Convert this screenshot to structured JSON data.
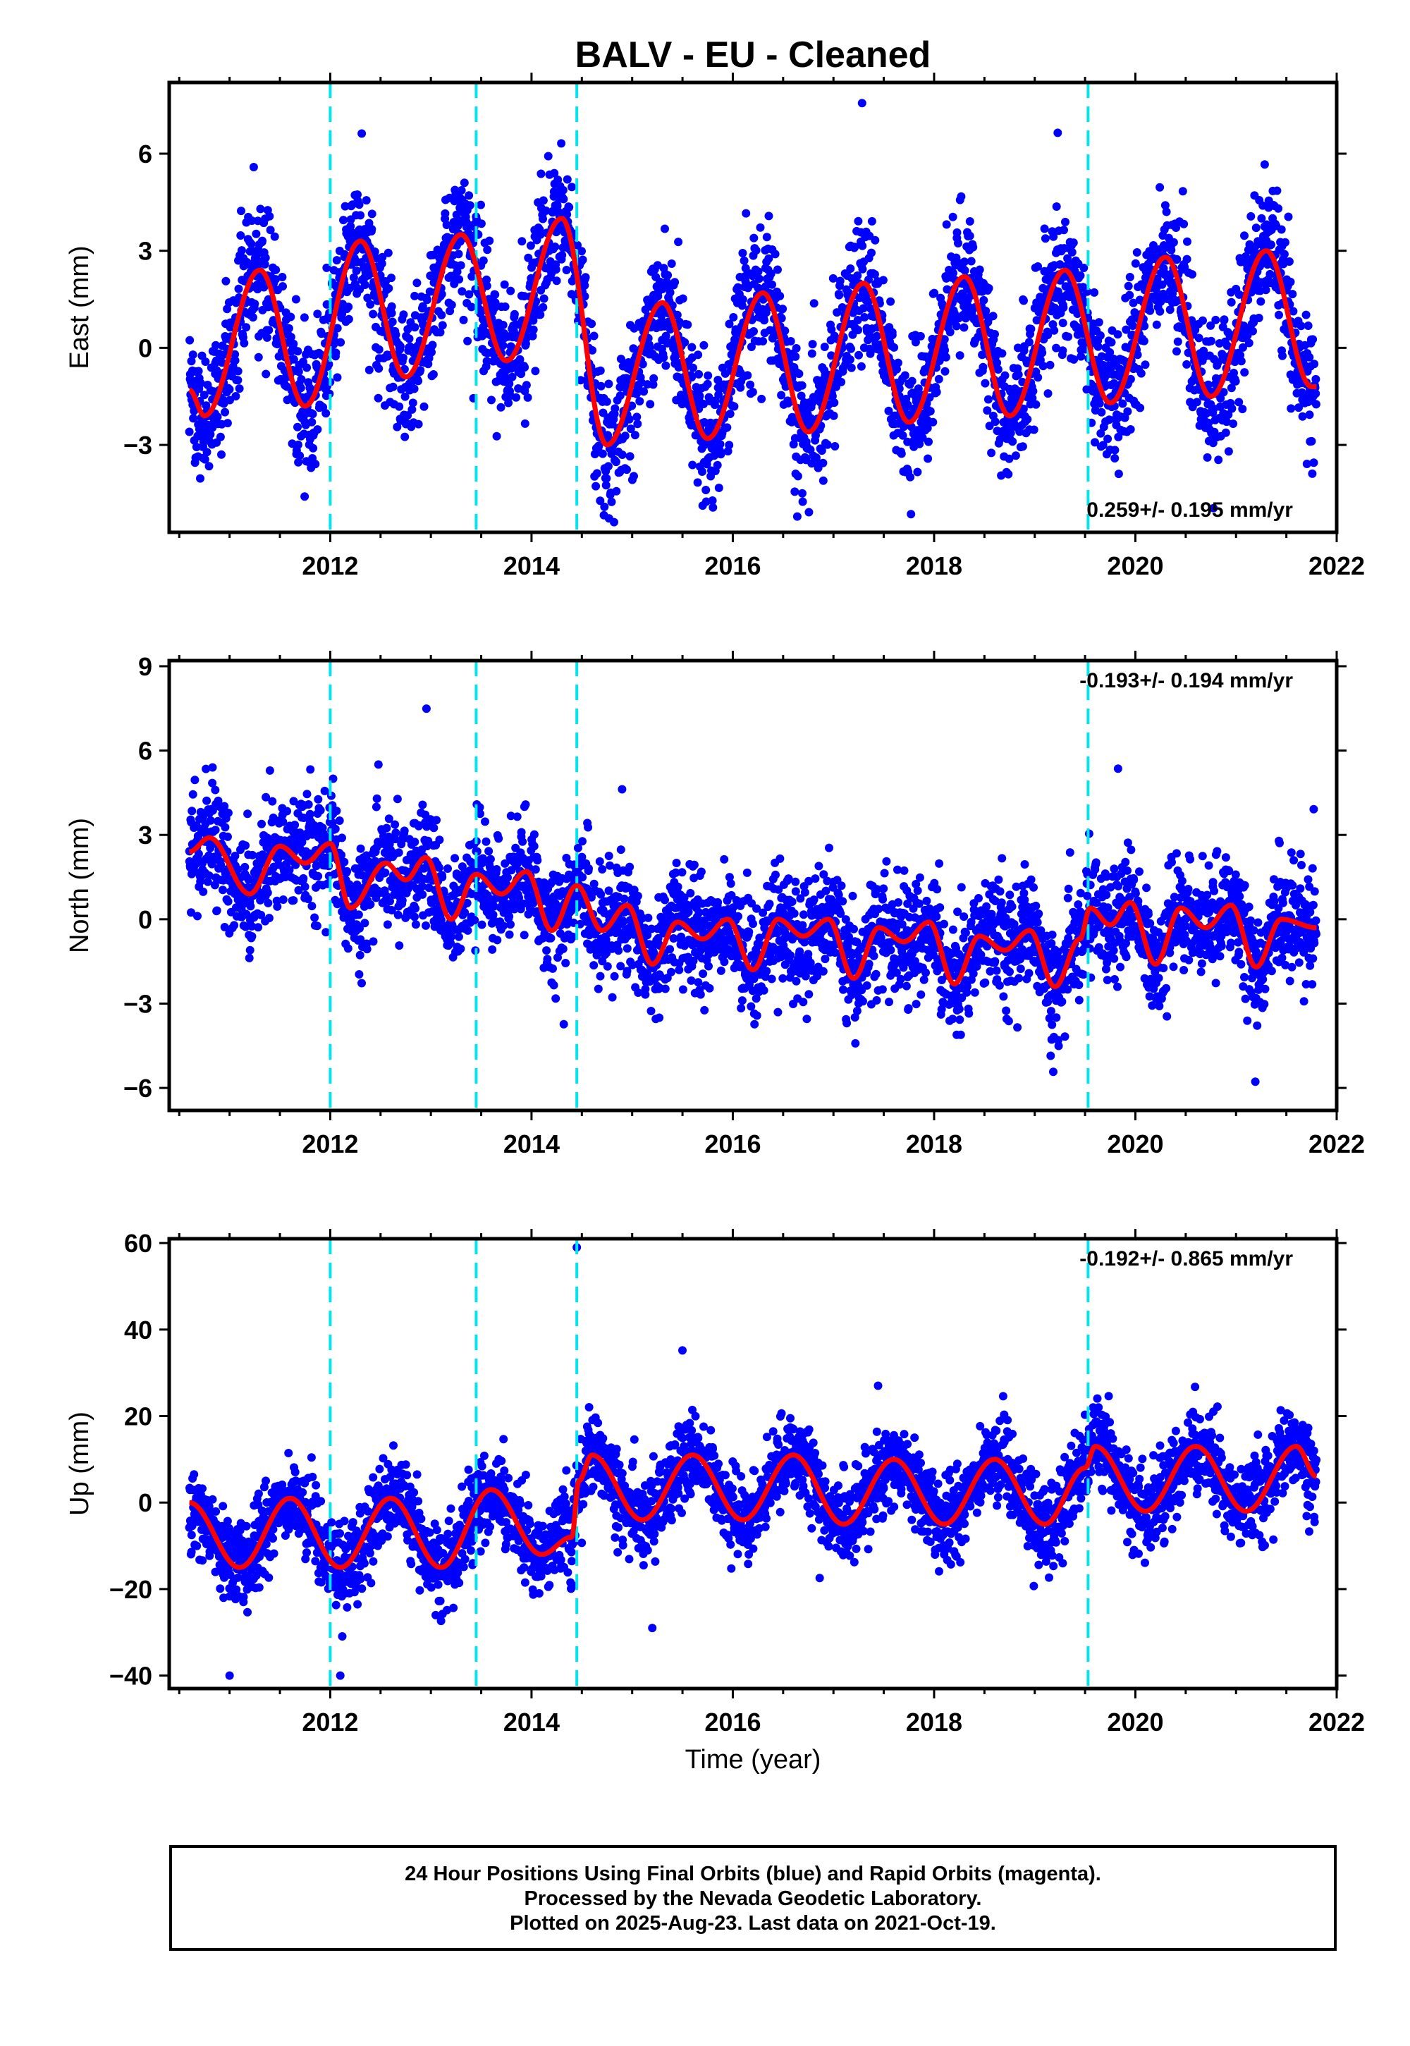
{
  "title": "BALV  - EU - Cleaned",
  "xlabel": "Time (year)",
  "footer": {
    "line1": "24 Hour Positions Using Final Orbits (blue) and Rapid Orbits (magenta).",
    "line2": "Processed by the Nevada Geodetic Laboratory.",
    "line3": "Plotted on 2025-Aug-23. Last data on 2021-Oct-19."
  },
  "colors": {
    "final_orbit_points": "#0000ff",
    "rapid_orbit_points": "#ff00ff",
    "model_fit": "#ff0000",
    "event_lines": "#00e5ee"
  },
  "chart_data": [
    {
      "type": "scatter",
      "panel": "east",
      "ylabel": "East (mm)",
      "rate_text": "0.259+/- 0.195 mm/yr",
      "rate_position": "bottom-right",
      "xlim": [
        2010.4,
        2022.0
      ],
      "ylim": [
        -5.7,
        8.2
      ],
      "x_ticks": [
        2012,
        2014,
        2016,
        2018,
        2020,
        2022
      ],
      "y_ticks": [
        -3,
        0,
        3,
        6
      ],
      "event_lines": [
        2012.0,
        2013.45,
        2014.45,
        2019.53
      ],
      "data_start": 2010.6,
      "data_end": 2021.8,
      "seasonal_model": {
        "annual_peaks": [
          {
            "x": 2010.6,
            "y": -1.3
          },
          {
            "x": 2010.75,
            "y": -2.1
          },
          {
            "x": 2011.3,
            "y": 2.4
          },
          {
            "x": 2011.75,
            "y": -1.8
          },
          {
            "x": 2012.3,
            "y": 3.3
          },
          {
            "x": 2012.75,
            "y": -0.9
          },
          {
            "x": 2013.3,
            "y": 3.5
          },
          {
            "x": 2013.75,
            "y": -0.4
          },
          {
            "x": 2014.3,
            "y": 4.0
          },
          {
            "x": 2014.75,
            "y": -3.0
          },
          {
            "x": 2015.3,
            "y": 1.4
          },
          {
            "x": 2015.75,
            "y": -2.8
          },
          {
            "x": 2016.3,
            "y": 1.7
          },
          {
            "x": 2016.75,
            "y": -2.6
          },
          {
            "x": 2017.3,
            "y": 2.0
          },
          {
            "x": 2017.75,
            "y": -2.3
          },
          {
            "x": 2018.3,
            "y": 2.2
          },
          {
            "x": 2018.75,
            "y": -2.1
          },
          {
            "x": 2019.3,
            "y": 2.4
          },
          {
            "x": 2019.75,
            "y": -1.7
          },
          {
            "x": 2020.3,
            "y": 2.8
          },
          {
            "x": 2020.75,
            "y": -1.5
          },
          {
            "x": 2021.3,
            "y": 3.0
          },
          {
            "x": 2021.75,
            "y": -1.2
          }
        ],
        "scatter_sigma": 1.0
      }
    },
    {
      "type": "scatter",
      "panel": "north",
      "ylabel": "North (mm)",
      "rate_text": "-0.193+/- 0.194 mm/yr",
      "rate_position": "top-right",
      "xlim": [
        2010.4,
        2022.0
      ],
      "ylim": [
        -6.8,
        9.2
      ],
      "x_ticks": [
        2012,
        2014,
        2016,
        2018,
        2020,
        2022
      ],
      "y_ticks": [
        -6,
        -3,
        0,
        3,
        6,
        9
      ],
      "event_lines": [
        2012.0,
        2013.45,
        2014.45,
        2019.53
      ],
      "data_start": 2010.6,
      "data_end": 2021.8,
      "seasonal_model": {
        "annual_peaks": [
          {
            "x": 2010.6,
            "y": 2.4
          },
          {
            "x": 2010.8,
            "y": 2.9
          },
          {
            "x": 2011.2,
            "y": 0.9
          },
          {
            "x": 2011.5,
            "y": 2.6
          },
          {
            "x": 2011.75,
            "y": 2.0
          },
          {
            "x": 2012.0,
            "y": 2.7
          },
          {
            "x": 2012.2,
            "y": 0.4
          },
          {
            "x": 2012.55,
            "y": 2.0
          },
          {
            "x": 2012.75,
            "y": 1.4
          },
          {
            "x": 2012.95,
            "y": 2.2
          },
          {
            "x": 2013.2,
            "y": 0.0
          },
          {
            "x": 2013.45,
            "y": 1.6
          },
          {
            "x": 2013.7,
            "y": 0.9
          },
          {
            "x": 2013.95,
            "y": 1.7
          },
          {
            "x": 2014.2,
            "y": -0.4
          },
          {
            "x": 2014.45,
            "y": 1.2
          },
          {
            "x": 2014.7,
            "y": -0.4
          },
          {
            "x": 2014.95,
            "y": 0.5
          },
          {
            "x": 2015.2,
            "y": -1.6
          },
          {
            "x": 2015.45,
            "y": -0.1
          },
          {
            "x": 2015.7,
            "y": -0.7
          },
          {
            "x": 2015.95,
            "y": 0.0
          },
          {
            "x": 2016.2,
            "y": -1.8
          },
          {
            "x": 2016.45,
            "y": 0.0
          },
          {
            "x": 2016.7,
            "y": -0.6
          },
          {
            "x": 2016.95,
            "y": 0.0
          },
          {
            "x": 2017.2,
            "y": -2.1
          },
          {
            "x": 2017.45,
            "y": -0.3
          },
          {
            "x": 2017.7,
            "y": -0.8
          },
          {
            "x": 2017.95,
            "y": -0.1
          },
          {
            "x": 2018.2,
            "y": -2.3
          },
          {
            "x": 2018.45,
            "y": -0.6
          },
          {
            "x": 2018.7,
            "y": -1.1
          },
          {
            "x": 2018.95,
            "y": -0.4
          },
          {
            "x": 2019.2,
            "y": -2.4
          },
          {
            "x": 2019.45,
            "y": -0.7
          },
          {
            "x": 2019.55,
            "y": 0.4
          },
          {
            "x": 2019.75,
            "y": -0.2
          },
          {
            "x": 2019.95,
            "y": 0.6
          },
          {
            "x": 2020.2,
            "y": -1.6
          },
          {
            "x": 2020.45,
            "y": 0.4
          },
          {
            "x": 2020.7,
            "y": -0.3
          },
          {
            "x": 2020.95,
            "y": 0.5
          },
          {
            "x": 2021.2,
            "y": -1.7
          },
          {
            "x": 2021.45,
            "y": 0.0
          },
          {
            "x": 2021.8,
            "y": -0.3
          }
        ],
        "scatter_sigma": 0.95
      }
    },
    {
      "type": "scatter",
      "panel": "up",
      "ylabel": "Up (mm)",
      "rate_text": "-0.192+/- 0.865 mm/yr",
      "rate_position": "top-right",
      "xlim": [
        2010.4,
        2022.0
      ],
      "ylim": [
        -43,
        61
      ],
      "x_ticks": [
        2012,
        2014,
        2016,
        2018,
        2020,
        2022
      ],
      "y_ticks": [
        -40,
        -20,
        0,
        20,
        40,
        60
      ],
      "event_lines": [
        2012.0,
        2013.45,
        2014.45,
        2019.53
      ],
      "data_start": 2010.6,
      "data_end": 2021.8,
      "seasonal_model": {
        "annual_peaks": [
          {
            "x": 2010.6,
            "y": 0.0
          },
          {
            "x": 2011.1,
            "y": -15.0
          },
          {
            "x": 2011.6,
            "y": 1.0
          },
          {
            "x": 2012.1,
            "y": -15.0
          },
          {
            "x": 2012.6,
            "y": 1.0
          },
          {
            "x": 2013.1,
            "y": -15.0
          },
          {
            "x": 2013.6,
            "y": 3.0
          },
          {
            "x": 2014.1,
            "y": -12.0
          },
          {
            "x": 2014.4,
            "y": -8.0
          },
          {
            "x": 2014.47,
            "y": 5.0
          },
          {
            "x": 2014.6,
            "y": 11.0
          },
          {
            "x": 2015.1,
            "y": -4.0
          },
          {
            "x": 2015.6,
            "y": 11.0
          },
          {
            "x": 2016.1,
            "y": -4.0
          },
          {
            "x": 2016.6,
            "y": 11.0
          },
          {
            "x": 2017.1,
            "y": -5.0
          },
          {
            "x": 2017.6,
            "y": 10.0
          },
          {
            "x": 2018.1,
            "y": -5.0
          },
          {
            "x": 2018.6,
            "y": 10.0
          },
          {
            "x": 2019.1,
            "y": -5.0
          },
          {
            "x": 2019.5,
            "y": 8.0
          },
          {
            "x": 2019.6,
            "y": 13.0
          },
          {
            "x": 2020.1,
            "y": -2.0
          },
          {
            "x": 2020.6,
            "y": 13.0
          },
          {
            "x": 2021.1,
            "y": -2.0
          },
          {
            "x": 2021.6,
            "y": 13.0
          },
          {
            "x": 2021.8,
            "y": 6.0
          }
        ],
        "scatter_sigma": 4.6
      },
      "outliers": [
        {
          "x": 2014.45,
          "y": 59.0
        },
        {
          "x": 2012.1,
          "y": -40.0
        },
        {
          "x": 2011.0,
          "y": -40.0
        },
        {
          "x": 2015.2,
          "y": -29.0
        }
      ]
    }
  ]
}
